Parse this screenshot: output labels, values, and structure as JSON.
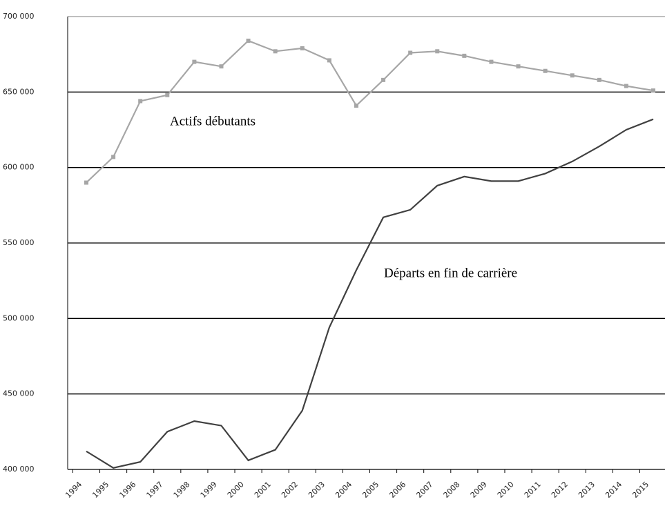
{
  "chart_data": {
    "type": "line",
    "categories": [
      "1994",
      "1995",
      "1996",
      "1997",
      "1998",
      "1999",
      "2000",
      "2001",
      "2002",
      "2003",
      "2004",
      "2005",
      "2006",
      "2007",
      "2008",
      "2009",
      "2010",
      "2011",
      "2012",
      "2013",
      "2014",
      "2015"
    ],
    "series": [
      {
        "name": "Actifs débutants",
        "color": "#a6a6a6",
        "markers": true,
        "values": [
          590000,
          607000,
          644000,
          648000,
          670000,
          667000,
          684000,
          677000,
          679000,
          671000,
          641000,
          658000,
          676000,
          677000,
          674000,
          670000,
          667000,
          664000,
          661000,
          658000,
          654000,
          651000
        ]
      },
      {
        "name": "Départs en fin de carrière",
        "color": "#404040",
        "markers": false,
        "values": [
          412000,
          401000,
          405000,
          425000,
          432000,
          429000,
          406000,
          413000,
          439000,
          494000,
          532000,
          567000,
          572000,
          588000,
          594000,
          591000,
          591000,
          596000,
          604000,
          614000,
          625000,
          632000
        ]
      }
    ],
    "ylim": [
      400000,
      700000
    ],
    "yticks": [
      {
        "value": 400000,
        "label": "400 000"
      },
      {
        "value": 450000,
        "label": "450 000"
      },
      {
        "value": 500000,
        "label": "500 000"
      },
      {
        "value": 550000,
        "label": "550 000"
      },
      {
        "value": 600000,
        "label": "600 000"
      },
      {
        "value": 650000,
        "label": "650 000"
      },
      {
        "value": 700000,
        "label": "700 000"
      }
    ],
    "grid": true
  }
}
